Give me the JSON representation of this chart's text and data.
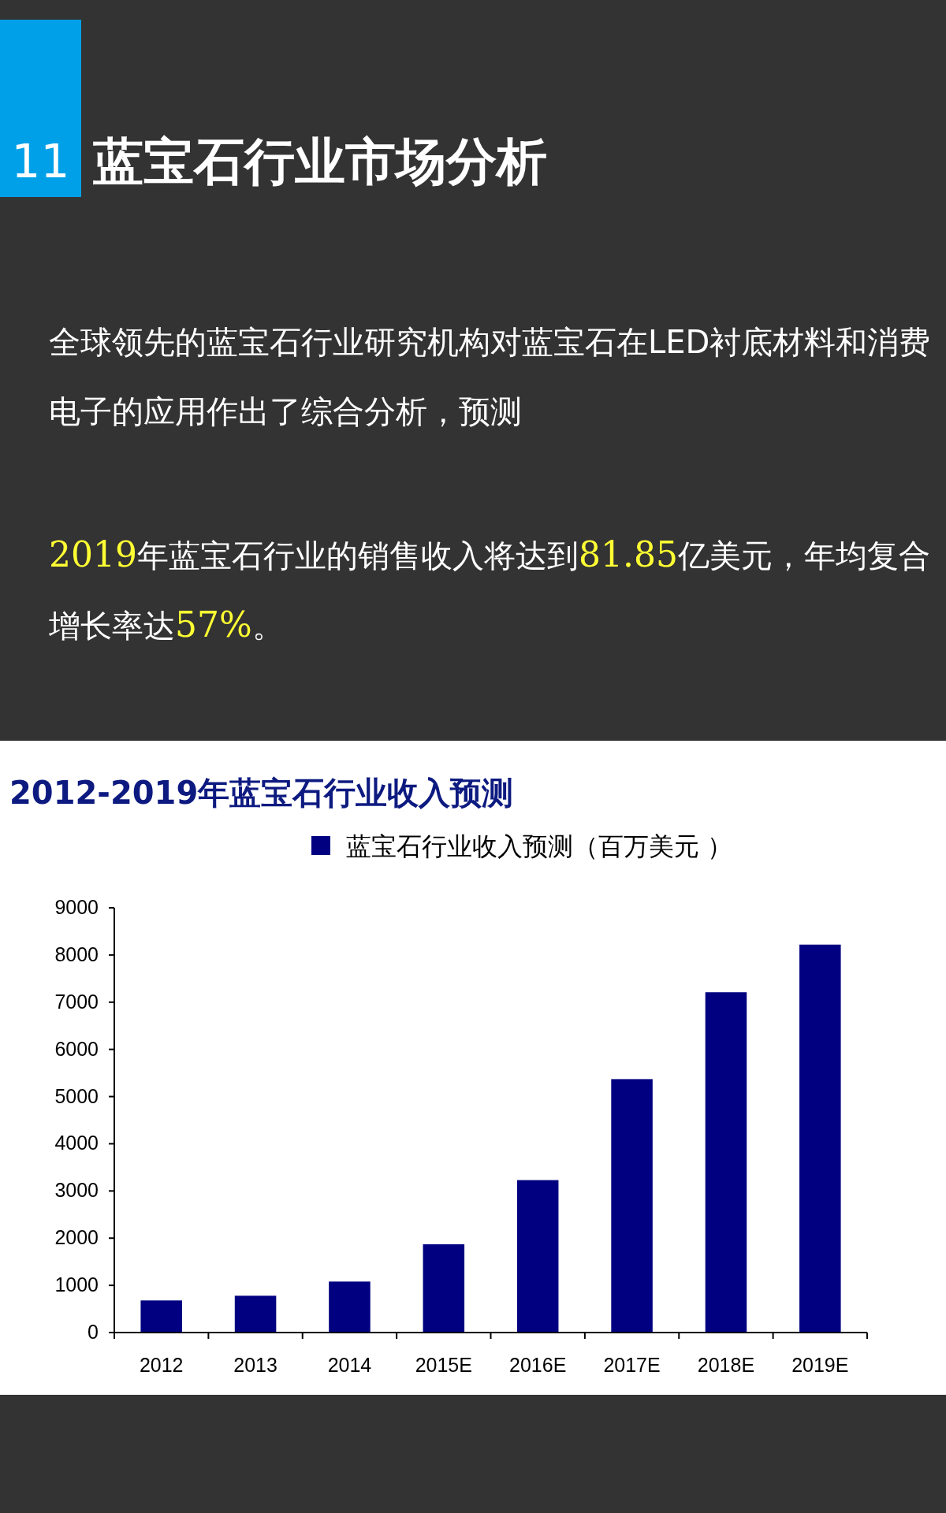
{
  "chart_data": {
    "type": "bar",
    "title": "2012-2019年蓝宝石行业收入预测",
    "annotations": [
      "11",
      "蓝宝石行业市场分析",
      "全球领先的蓝宝石行业研究机构对蓝宝石在LED衬底材料和消费电子的应用作出了综合分析，预测",
      "2019年蓝宝石行业的销售收入将达到81.85亿美元，年均复合增长率达57%。"
    ],
    "categories": [
      "2012",
      "2013",
      "2014",
      "2015E",
      "2016E",
      "2017E",
      "2018E",
      "2019E"
    ],
    "series": [
      {
        "name": "蓝宝石行业收入预测（百万美元 ）",
        "color": "#000080",
        "values": [
          680,
          780,
          1080,
          1870,
          3230,
          5370,
          7210,
          8220
        ]
      }
    ],
    "ylim": [
      0,
      9000
    ],
    "yticks": [
      0,
      1000,
      2000,
      3000,
      4000,
      5000,
      6000,
      7000,
      8000,
      9000
    ],
    "legend": "top",
    "grid": false
  }
}
